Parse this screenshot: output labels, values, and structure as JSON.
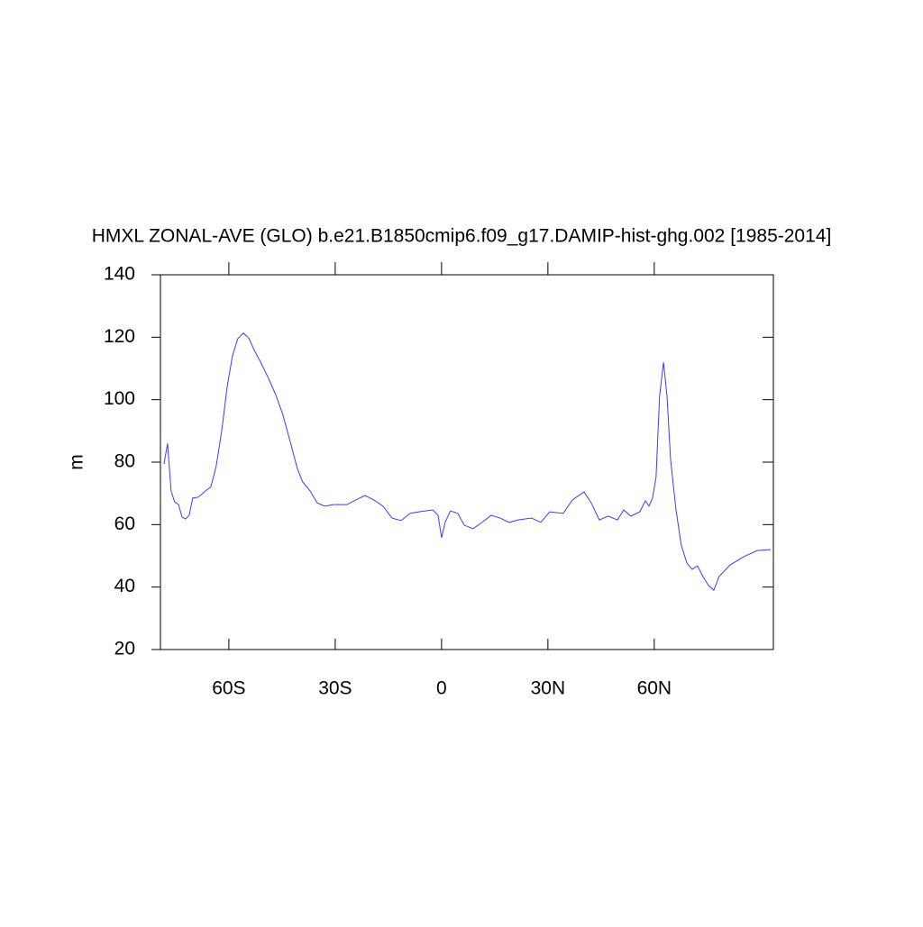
{
  "chart_data": {
    "type": "line",
    "title": "HMXL ZONAL-AVE (GLO) b.e21.B1850cmip6.f09_g17.DAMIP-hist-ghg.002 [1985-2014]",
    "y_label": "m",
    "x": [
      -78.3,
      -77.3,
      -76.3,
      -75.3,
      -74.2,
      -73.2,
      -72.2,
      -71.2,
      -70.2,
      -68.6,
      -66.6,
      -65.1,
      -63.6,
      -62,
      -60.5,
      -59,
      -57.5,
      -55.9,
      -54.4,
      -52.9,
      -50.9,
      -48.8,
      -46.8,
      -44.8,
      -42.7,
      -40.7,
      -39.2,
      -37.1,
      -35.1,
      -33,
      -30.5,
      -26.7,
      -24.2,
      -21.6,
      -19.1,
      -16.5,
      -14,
      -11.4,
      -8.9,
      -6.4,
      -2.5,
      -1,
      0,
      1,
      2.5,
      4.6,
      6.4,
      8.9,
      11.4,
      14,
      16.5,
      19.1,
      21.6,
      25.4,
      28,
      30.5,
      34.3,
      36.9,
      40.2,
      42.2,
      44.5,
      47,
      49.6,
      51.4,
      53.4,
      55.9,
      57.5,
      58.5,
      59.5,
      60.5,
      61.5,
      62.6,
      63.6,
      64.6,
      66.1,
      67.6,
      69.2,
      70.7,
      72.2,
      73.7,
      75.3,
      76.8,
      78.3,
      81.4,
      85.2,
      89,
      92.8
    ],
    "series": [
      {
        "color": "#3b3bff",
        "values": [
          79.4,
          86,
          70.8,
          67.3,
          66.4,
          62.4,
          61.8,
          63,
          68.5,
          68.8,
          70.8,
          72,
          78.6,
          90.1,
          104,
          114,
          119.5,
          121.3,
          119.8,
          116,
          111.7,
          106.8,
          101.6,
          95.3,
          86.6,
          78,
          73.7,
          70.8,
          67,
          65.9,
          66.4,
          66.4,
          67.9,
          69.3,
          67.9,
          65.9,
          62.1,
          61.3,
          63.6,
          64.1,
          64.7,
          63,
          55.8,
          60.7,
          64.4,
          63.6,
          59.8,
          58.7,
          60.7,
          63,
          62.1,
          60.7,
          61.5,
          62.1,
          60.7,
          64.1,
          63.6,
          67.9,
          70.5,
          67,
          61.5,
          62.7,
          61.5,
          64.7,
          62.7,
          64.1,
          67.6,
          65.9,
          68.5,
          75.1,
          101.1,
          112,
          101.1,
          80.9,
          65,
          53.5,
          47.7,
          45.7,
          46.8,
          43.4,
          40.5,
          39,
          43.4,
          47.1,
          49.7,
          51.7,
          52
        ]
      }
    ],
    "xlim": [
      -79.3,
      93.6
    ],
    "xticks": [
      {
        "value": -60,
        "label": "60S"
      },
      {
        "value": -30,
        "label": "30S"
      },
      0,
      {
        "value": 30,
        "label": "30N"
      },
      {
        "value": 60,
        "label": "60N"
      }
    ],
    "ylim": [
      20,
      140
    ],
    "yticks": [
      20,
      40,
      60,
      80,
      100,
      120,
      140
    ]
  }
}
